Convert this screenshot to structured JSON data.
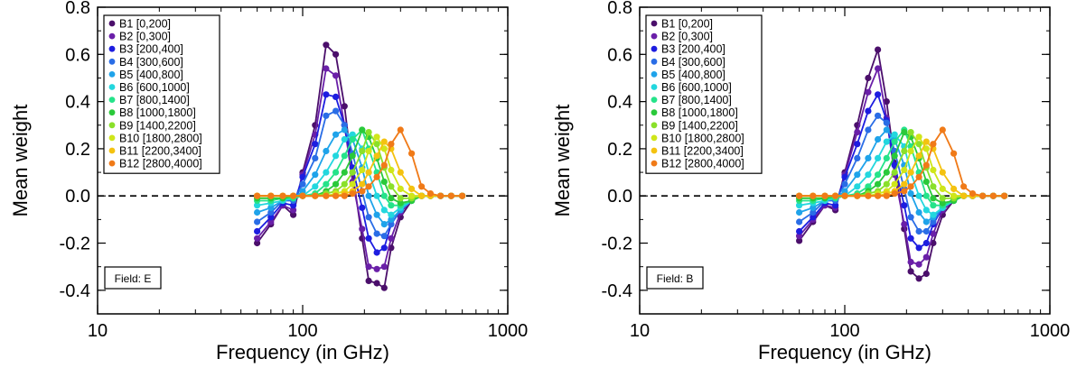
{
  "chart_data": [
    {
      "type": "line",
      "x_scale": "log",
      "xlim": [
        10,
        1000
      ],
      "ylim": [
        -0.5,
        0.8
      ],
      "xticks": [
        "10",
        "100",
        "1000"
      ],
      "yticks": [
        "-0.4",
        "-0.2",
        "0.0",
        "0.2",
        "0.4",
        "0.6",
        "0.8"
      ],
      "xlabel": "Frequency (in GHz)",
      "ylabel": "Mean weight",
      "field_label": "Field: E",
      "legend_position": "top-left",
      "zero_line": "dashed",
      "x": [
        60,
        70,
        80,
        90,
        100,
        115,
        130,
        145,
        160,
        175,
        195,
        210,
        230,
        250,
        270,
        300,
        340,
        380,
        420,
        470,
        530,
        600
      ],
      "series": [
        {
          "name": "B1 [0,200]",
          "color": "#4b0f6b",
          "values": [
            -0.2,
            -0.12,
            -0.04,
            -0.08,
            0.1,
            0.3,
            0.64,
            0.6,
            0.38,
            0.1,
            -0.18,
            -0.36,
            -0.37,
            -0.39,
            -0.22,
            -0.09,
            -0.02,
            0.0,
            0.0,
            0.0,
            0.0,
            0.0
          ]
        },
        {
          "name": "B2 [0,300]",
          "color": "#6a1fa8",
          "values": [
            -0.18,
            -0.11,
            -0.04,
            -0.06,
            0.09,
            0.26,
            0.54,
            0.51,
            0.3,
            0.06,
            -0.14,
            -0.3,
            -0.31,
            -0.3,
            -0.18,
            -0.07,
            -0.02,
            0.0,
            0.0,
            0.0,
            0.0,
            0.0
          ]
        },
        {
          "name": "B3 [200,400]",
          "color": "#1d1de0",
          "values": [
            -0.15,
            -0.09,
            -0.03,
            -0.04,
            0.08,
            0.22,
            0.43,
            0.42,
            0.3,
            0.12,
            -0.05,
            -0.18,
            -0.24,
            -0.22,
            -0.12,
            -0.06,
            -0.01,
            0.0,
            0.0,
            0.0,
            0.0,
            0.0
          ]
        },
        {
          "name": "B4 [300,600]",
          "color": "#2a6de6",
          "values": [
            -0.11,
            -0.07,
            -0.02,
            -0.02,
            0.05,
            0.16,
            0.34,
            0.36,
            0.3,
            0.18,
            0.02,
            -0.09,
            -0.16,
            -0.17,
            -0.12,
            -0.06,
            -0.02,
            0.0,
            0.0,
            0.0,
            0.0,
            0.0
          ]
        },
        {
          "name": "B5 [400,800]",
          "color": "#1fa3ea",
          "values": [
            -0.07,
            -0.05,
            -0.02,
            -0.01,
            0.02,
            0.09,
            0.19,
            0.26,
            0.28,
            0.24,
            0.12,
            0.0,
            -0.08,
            -0.12,
            -0.1,
            -0.06,
            -0.02,
            0.0,
            0.0,
            0.0,
            0.0,
            0.0
          ]
        },
        {
          "name": "B6 [600,1000]",
          "color": "#23d7de",
          "values": [
            -0.04,
            -0.03,
            -0.02,
            -0.01,
            0.0,
            0.04,
            0.1,
            0.17,
            0.24,
            0.26,
            0.2,
            0.1,
            0.0,
            -0.06,
            -0.08,
            -0.05,
            -0.02,
            0.0,
            0.0,
            0.0,
            0.0,
            0.0
          ]
        },
        {
          "name": "B7 [800,1400]",
          "color": "#25e38a",
          "values": [
            -0.02,
            -0.02,
            -0.01,
            -0.01,
            0.0,
            0.01,
            0.05,
            0.1,
            0.17,
            0.24,
            0.28,
            0.2,
            0.1,
            0.0,
            -0.04,
            -0.04,
            -0.02,
            0.0,
            0.0,
            0.0,
            0.0,
            0.0
          ]
        },
        {
          "name": "B8 [1000,1800]",
          "color": "#2ac93a",
          "values": [
            -0.01,
            -0.01,
            -0.01,
            0.0,
            0.0,
            0.0,
            0.02,
            0.05,
            0.1,
            0.17,
            0.28,
            0.25,
            0.16,
            0.06,
            -0.01,
            -0.03,
            -0.02,
            0.0,
            0.0,
            0.0,
            0.0,
            0.0
          ]
        },
        {
          "name": "B9 [1400,2200]",
          "color": "#8ae02a",
          "values": [
            0.0,
            0.0,
            0.0,
            0.0,
            0.0,
            0.0,
            0.01,
            0.02,
            0.05,
            0.1,
            0.19,
            0.27,
            0.22,
            0.12,
            0.04,
            -0.01,
            -0.01,
            0.0,
            0.0,
            0.0,
            0.0,
            0.0
          ]
        },
        {
          "name": "B10 [1800,2800]",
          "color": "#cfe61a",
          "values": [
            0.0,
            0.0,
            0.0,
            0.0,
            0.0,
            0.0,
            0.0,
            0.01,
            0.02,
            0.05,
            0.11,
            0.19,
            0.25,
            0.2,
            0.11,
            0.03,
            0.0,
            0.0,
            0.0,
            0.0,
            0.0,
            0.0
          ]
        },
        {
          "name": "B11 [2200,3400]",
          "color": "#f4c210",
          "values": [
            0.0,
            0.0,
            0.0,
            0.0,
            0.0,
            0.0,
            0.0,
            0.0,
            0.01,
            0.02,
            0.05,
            0.1,
            0.17,
            0.23,
            0.2,
            0.1,
            0.03,
            0.0,
            0.0,
            0.0,
            0.0,
            0.0
          ]
        },
        {
          "name": "B12 [2800,4000]",
          "color": "#f07a18",
          "values": [
            0.0,
            0.0,
            0.0,
            0.0,
            0.0,
            0.0,
            0.0,
            0.0,
            0.0,
            0.01,
            0.02,
            0.04,
            0.08,
            0.13,
            0.22,
            0.28,
            0.18,
            0.04,
            0.01,
            0.0,
            0.0,
            0.0
          ]
        }
      ]
    },
    {
      "type": "line",
      "x_scale": "log",
      "xlim": [
        10,
        1000
      ],
      "ylim": [
        -0.5,
        0.8
      ],
      "xticks": [
        "10",
        "100",
        "1000"
      ],
      "yticks": [
        "-0.4",
        "-0.2",
        "0.0",
        "0.2",
        "0.4",
        "0.6",
        "0.8"
      ],
      "xlabel": "Frequency (in GHz)",
      "ylabel": "Mean weight",
      "field_label": "Field: B",
      "legend_position": "top-left",
      "zero_line": "dashed",
      "x": [
        60,
        70,
        80,
        90,
        100,
        115,
        130,
        145,
        160,
        175,
        195,
        210,
        230,
        250,
        270,
        300,
        340,
        380,
        420,
        470,
        530,
        600
      ],
      "series": [
        {
          "name": "B1 [0,200]",
          "color": "#4b0f6b",
          "values": [
            -0.19,
            -0.11,
            -0.04,
            -0.06,
            0.1,
            0.3,
            0.5,
            0.62,
            0.4,
            0.14,
            -0.14,
            -0.32,
            -0.35,
            -0.33,
            -0.2,
            -0.08,
            -0.02,
            0.0,
            0.0,
            0.0,
            0.0,
            0.0
          ]
        },
        {
          "name": "B2 [0,300]",
          "color": "#6a1fa8",
          "values": [
            -0.17,
            -0.1,
            -0.04,
            -0.05,
            0.09,
            0.27,
            0.44,
            0.54,
            0.33,
            0.09,
            -0.12,
            -0.28,
            -0.29,
            -0.26,
            -0.16,
            -0.06,
            -0.02,
            0.0,
            0.0,
            0.0,
            0.0,
            0.0
          ]
        },
        {
          "name": "B3 [200,400]",
          "color": "#1d1de0",
          "values": [
            -0.15,
            -0.09,
            -0.03,
            -0.04,
            0.08,
            0.22,
            0.36,
            0.43,
            0.32,
            0.13,
            -0.04,
            -0.18,
            -0.22,
            -0.2,
            -0.12,
            -0.05,
            -0.01,
            0.0,
            0.0,
            0.0,
            0.0,
            0.0
          ]
        },
        {
          "name": "B4 [300,600]",
          "color": "#2a6de6",
          "values": [
            -0.11,
            -0.07,
            -0.02,
            -0.02,
            0.05,
            0.16,
            0.28,
            0.34,
            0.31,
            0.19,
            0.03,
            -0.09,
            -0.15,
            -0.15,
            -0.11,
            -0.05,
            -0.02,
            0.0,
            0.0,
            0.0,
            0.0,
            0.0
          ]
        },
        {
          "name": "B5 [400,800]",
          "color": "#1fa3ea",
          "values": [
            -0.07,
            -0.05,
            -0.02,
            -0.01,
            0.02,
            0.09,
            0.16,
            0.24,
            0.28,
            0.24,
            0.13,
            0.01,
            -0.07,
            -0.11,
            -0.09,
            -0.05,
            -0.02,
            0.0,
            0.0,
            0.0,
            0.0,
            0.0
          ]
        },
        {
          "name": "B6 [600,1000]",
          "color": "#23d7de",
          "values": [
            -0.04,
            -0.03,
            -0.02,
            -0.01,
            0.0,
            0.04,
            0.09,
            0.16,
            0.23,
            0.26,
            0.21,
            0.1,
            0.0,
            -0.06,
            -0.08,
            -0.05,
            -0.02,
            0.0,
            0.0,
            0.0,
            0.0,
            0.0
          ]
        },
        {
          "name": "B7 [800,1400]",
          "color": "#25e38a",
          "values": [
            -0.02,
            -0.02,
            -0.01,
            -0.01,
            0.0,
            0.01,
            0.04,
            0.09,
            0.16,
            0.23,
            0.28,
            0.21,
            0.1,
            0.0,
            -0.04,
            -0.04,
            -0.02,
            0.0,
            0.0,
            0.0,
            0.0,
            0.0
          ]
        },
        {
          "name": "B8 [1000,1800]",
          "color": "#2ac93a",
          "values": [
            -0.01,
            -0.01,
            -0.01,
            0.0,
            0.0,
            0.0,
            0.02,
            0.05,
            0.1,
            0.17,
            0.27,
            0.25,
            0.16,
            0.06,
            -0.01,
            -0.03,
            -0.02,
            0.0,
            0.0,
            0.0,
            0.0,
            0.0
          ]
        },
        {
          "name": "B9 [1400,2200]",
          "color": "#8ae02a",
          "values": [
            0.0,
            0.0,
            0.0,
            0.0,
            0.0,
            0.0,
            0.01,
            0.02,
            0.05,
            0.1,
            0.19,
            0.27,
            0.22,
            0.12,
            0.04,
            -0.01,
            -0.01,
            0.0,
            0.0,
            0.0,
            0.0,
            0.0
          ]
        },
        {
          "name": "B10 [1800,2800]",
          "color": "#cfe61a",
          "values": [
            0.0,
            0.0,
            0.0,
            0.0,
            0.0,
            0.0,
            0.0,
            0.01,
            0.02,
            0.05,
            0.11,
            0.19,
            0.25,
            0.2,
            0.11,
            0.03,
            0.0,
            0.0,
            0.0,
            0.0,
            0.0,
            0.0
          ]
        },
        {
          "name": "B11 [2200,3400]",
          "color": "#f4c210",
          "values": [
            0.0,
            0.0,
            0.0,
            0.0,
            0.0,
            0.0,
            0.0,
            0.0,
            0.01,
            0.02,
            0.05,
            0.1,
            0.17,
            0.23,
            0.2,
            0.1,
            0.03,
            0.0,
            0.0,
            0.0,
            0.0,
            0.0
          ]
        },
        {
          "name": "B12 [2800,4000]",
          "color": "#f07a18",
          "values": [
            0.0,
            0.0,
            0.0,
            0.0,
            0.0,
            0.0,
            0.0,
            0.0,
            0.0,
            0.01,
            0.02,
            0.04,
            0.08,
            0.13,
            0.22,
            0.28,
            0.18,
            0.04,
            0.01,
            0.0,
            0.0,
            0.0
          ]
        }
      ]
    }
  ]
}
